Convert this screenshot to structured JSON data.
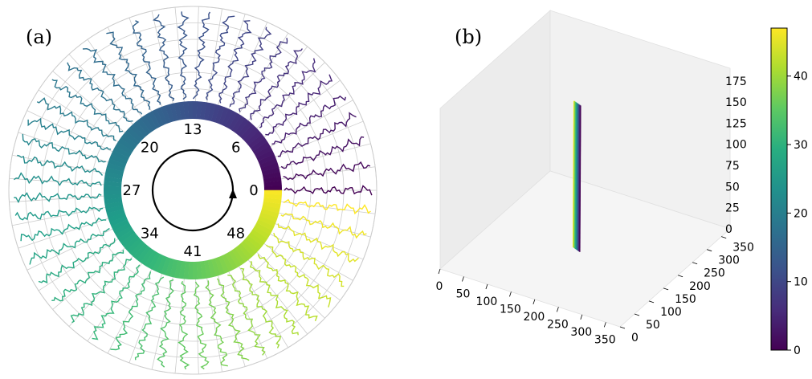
{
  "figure": {
    "panel_a_label": "(a)",
    "panel_b_label": "(b)"
  },
  "chart_data": [
    {
      "type": "polar",
      "panel": "(a)",
      "ring_labels": [
        "0",
        "6",
        "13",
        "20",
        "27",
        "34",
        "41",
        "48"
      ],
      "ring_label_angles_deg": [
        0,
        45,
        90,
        135,
        180,
        225,
        270,
        315
      ],
      "frames": 49,
      "color_range": [
        0,
        48
      ],
      "colormap": "viridis",
      "rotation_direction": "counterclockwise",
      "grid": true,
      "rings": 6
    },
    {
      "type": "3d-line",
      "panel": "(b)",
      "x_ticks": [
        "0",
        "50",
        "100",
        "150",
        "200",
        "250",
        "300",
        "350"
      ],
      "y_ticks": [
        "0",
        "50",
        "100",
        "150",
        "200",
        "250",
        "300",
        "350"
      ],
      "z_ticks": [
        "0",
        "25",
        "50",
        "75",
        "100",
        "125",
        "150",
        "175"
      ],
      "xlim": [
        0,
        380
      ],
      "ylim": [
        0,
        380
      ],
      "zlim": [
        0,
        190
      ],
      "n_lines": 49,
      "colorbar": {
        "ticks": [
          "0",
          "10",
          "20",
          "30",
          "40"
        ],
        "range": [
          0,
          47
        ],
        "colormap": "viridis"
      }
    }
  ],
  "colors": {
    "grid": "#cccccc",
    "pane": "#f2f2f2",
    "pane_dark": "#e9e9e9"
  }
}
